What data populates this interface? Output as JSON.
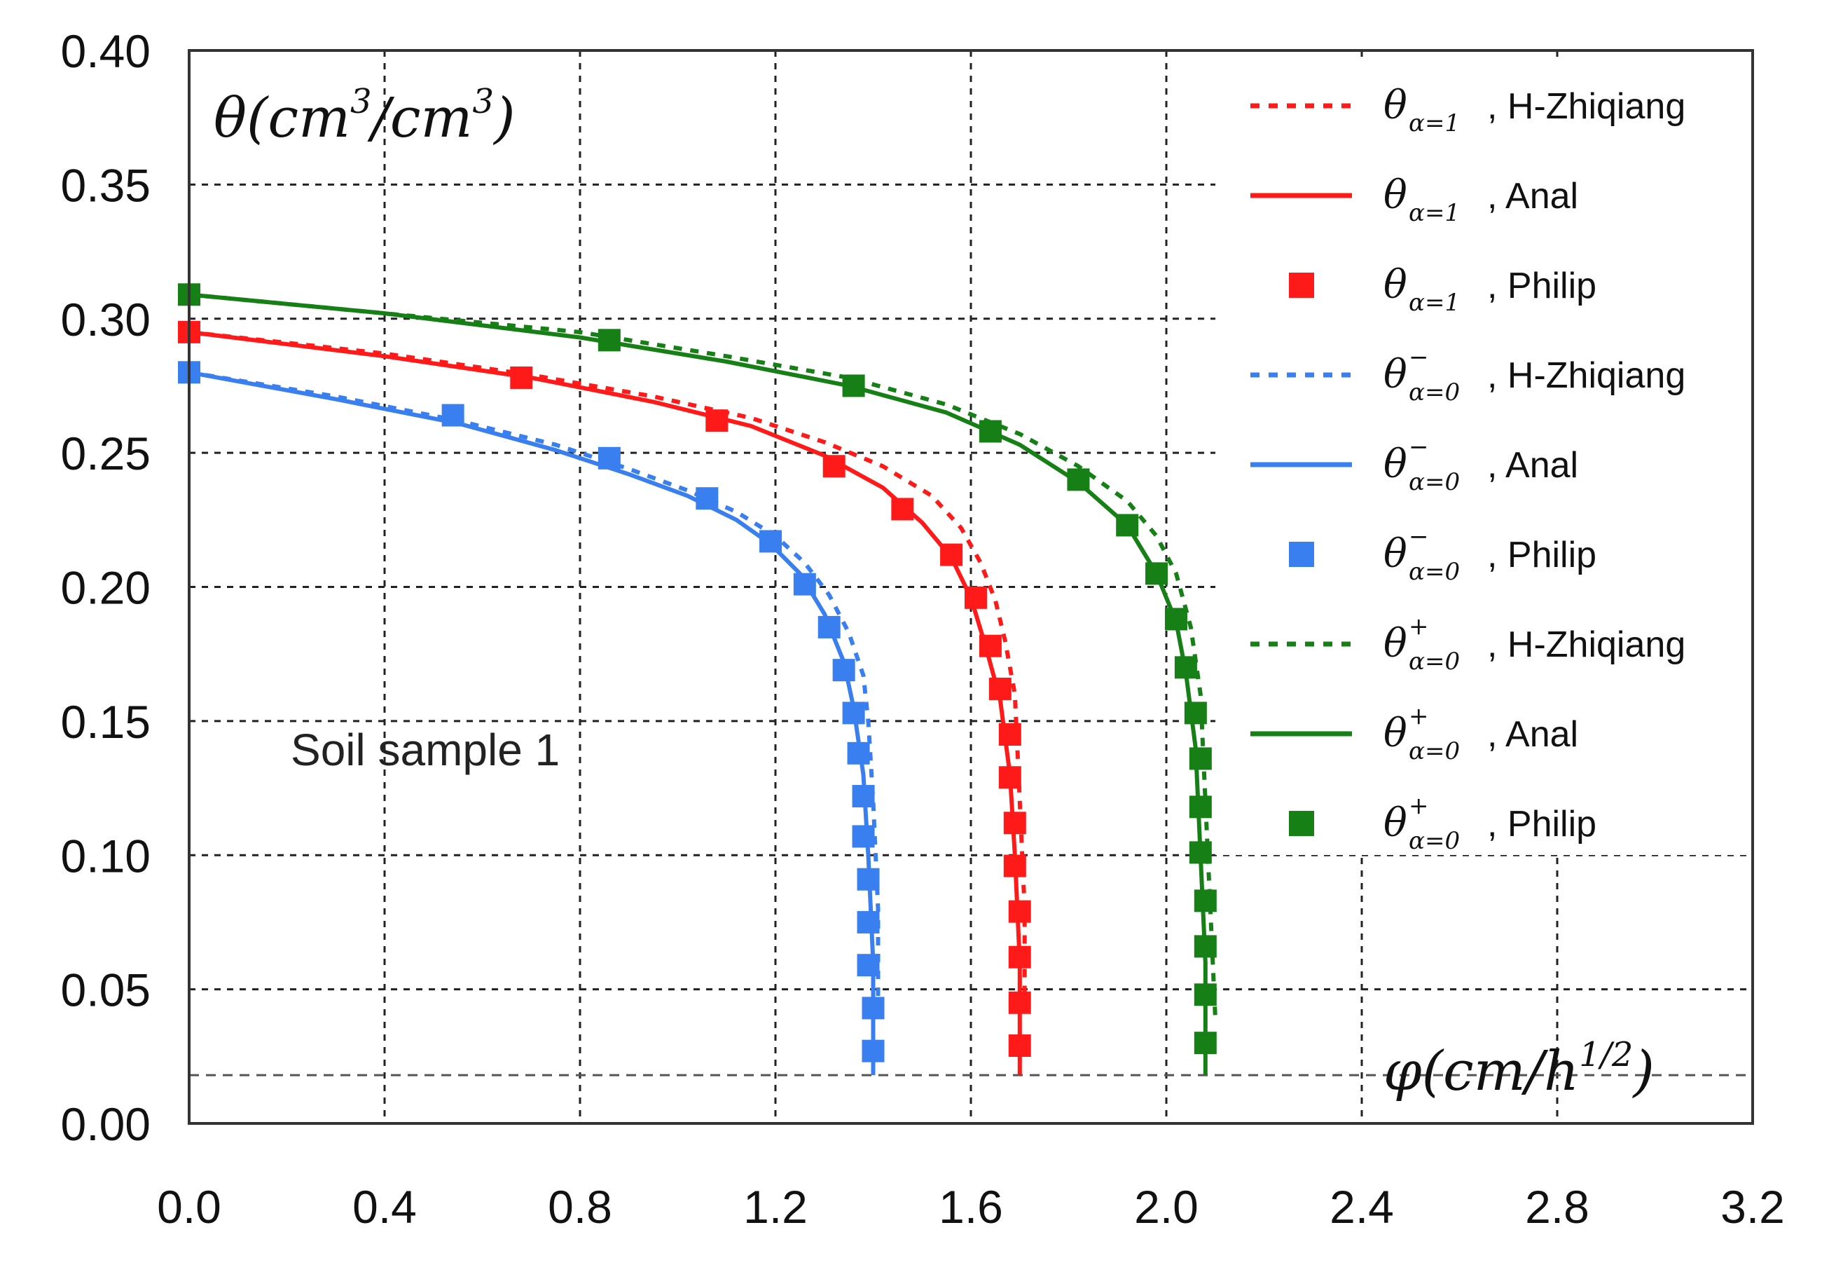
{
  "chart_data": {
    "type": "line",
    "title": "",
    "ylabel": "θ(cm³/cm³)",
    "ylabel_parts": {
      "sym": "θ(cm",
      "sup1": "3",
      "mid": "/cm",
      "sup2": "3",
      "end": ")"
    },
    "xlabel": "φ(cm/h^(1/2))",
    "xlabel_parts": {
      "sym": "φ(cm/h",
      "sup": "1/2",
      "end": ")"
    },
    "annotation": "Soil sample 1",
    "xlim": [
      0.0,
      3.2
    ],
    "ylim": [
      0.0,
      0.4
    ],
    "x_ticks": [
      "0.0",
      "0.4",
      "0.8",
      "1.2",
      "1.6",
      "2.0",
      "2.4",
      "2.8",
      "3.2"
    ],
    "y_ticks": [
      "0.00",
      "0.05",
      "0.10",
      "0.15",
      "0.20",
      "0.25",
      "0.30",
      "0.35",
      "0.40"
    ],
    "grid": true,
    "legend_position": "top-right",
    "colors": {
      "red": "#ff1a1a",
      "blue": "#3a7ff0",
      "green": "#168016",
      "grid": "#222222"
    },
    "legend": [
      {
        "symbol": "θ",
        "sup": "",
        "sub": "α=1",
        "text": ", H-Zhiqiang",
        "color": "red",
        "style": "dotted"
      },
      {
        "symbol": "θ",
        "sup": "",
        "sub": "α=1",
        "text": ", Anal",
        "color": "red",
        "style": "solid"
      },
      {
        "symbol": "θ",
        "sup": "",
        "sub": "α=1",
        "text": ", Philip",
        "color": "red",
        "style": "marker"
      },
      {
        "symbol": "θ",
        "sup": "−",
        "sub": "α=0",
        "text": ", H-Zhiqiang",
        "color": "blue",
        "style": "dotted"
      },
      {
        "symbol": "θ",
        "sup": "−",
        "sub": "α=0",
        "text": ", Anal",
        "color": "blue",
        "style": "solid"
      },
      {
        "symbol": "θ",
        "sup": "−",
        "sub": "α=0",
        "text": ", Philip",
        "color": "blue",
        "style": "marker"
      },
      {
        "symbol": "θ",
        "sup": "+",
        "sub": "α=0",
        "text": ", H-Zhiqiang",
        "color": "green",
        "style": "dotted"
      },
      {
        "symbol": "θ",
        "sup": "+",
        "sub": "α=0",
        "text": ", Anal",
        "color": "green",
        "style": "solid"
      },
      {
        "symbol": "θ",
        "sup": "+",
        "sub": "α=0",
        "text": ", Philip",
        "color": "green",
        "style": "marker"
      }
    ],
    "series": [
      {
        "name": "θα=0−, H-Zhiqiang",
        "color": "blue",
        "style": "dotted",
        "points": [
          [
            0.0,
            0.28
          ],
          [
            0.3,
            0.271
          ],
          [
            0.55,
            0.262
          ],
          [
            0.75,
            0.253
          ],
          [
            0.9,
            0.244
          ],
          [
            1.02,
            0.236
          ],
          [
            1.12,
            0.228
          ],
          [
            1.2,
            0.219
          ],
          [
            1.26,
            0.209
          ],
          [
            1.31,
            0.197
          ],
          [
            1.35,
            0.183
          ],
          [
            1.38,
            0.167
          ],
          [
            1.39,
            0.15
          ],
          [
            1.4,
            0.12
          ],
          [
            1.41,
            0.08
          ],
          [
            1.41,
            0.04
          ]
        ]
      },
      {
        "name": "θα=0−, Anal",
        "color": "blue",
        "style": "solid",
        "points": [
          [
            0.0,
            0.28
          ],
          [
            0.3,
            0.27
          ],
          [
            0.55,
            0.261
          ],
          [
            0.75,
            0.251
          ],
          [
            0.9,
            0.242
          ],
          [
            1.02,
            0.234
          ],
          [
            1.12,
            0.225
          ],
          [
            1.19,
            0.216
          ],
          [
            1.25,
            0.205
          ],
          [
            1.3,
            0.19
          ],
          [
            1.34,
            0.172
          ],
          [
            1.36,
            0.155
          ],
          [
            1.38,
            0.13
          ],
          [
            1.39,
            0.1
          ],
          [
            1.4,
            0.06
          ],
          [
            1.4,
            0.018
          ]
        ]
      },
      {
        "name": "θα=0−, Philip",
        "color": "blue",
        "style": "marker",
        "points": [
          [
            0.0,
            0.28
          ],
          [
            0.54,
            0.264
          ],
          [
            0.86,
            0.248
          ],
          [
            1.06,
            0.233
          ],
          [
            1.19,
            0.217
          ],
          [
            1.26,
            0.201
          ],
          [
            1.31,
            0.185
          ],
          [
            1.34,
            0.169
          ],
          [
            1.36,
            0.153
          ],
          [
            1.37,
            0.138
          ],
          [
            1.38,
            0.122
          ],
          [
            1.38,
            0.107
          ],
          [
            1.39,
            0.091
          ],
          [
            1.39,
            0.075
          ],
          [
            1.39,
            0.059
          ],
          [
            1.4,
            0.043
          ],
          [
            1.4,
            0.027
          ]
        ]
      },
      {
        "name": "θα=1, H-Zhiqiang",
        "color": "red",
        "style": "dotted",
        "points": [
          [
            0.0,
            0.295
          ],
          [
            0.4,
            0.287
          ],
          [
            0.7,
            0.279
          ],
          [
            0.95,
            0.271
          ],
          [
            1.15,
            0.263
          ],
          [
            1.3,
            0.254
          ],
          [
            1.42,
            0.245
          ],
          [
            1.52,
            0.234
          ],
          [
            1.58,
            0.222
          ],
          [
            1.62,
            0.209
          ],
          [
            1.65,
            0.195
          ],
          [
            1.67,
            0.18
          ],
          [
            1.69,
            0.16
          ],
          [
            1.7,
            0.12
          ],
          [
            1.71,
            0.08
          ],
          [
            1.71,
            0.04
          ]
        ]
      },
      {
        "name": "θα=1, Anal",
        "color": "red",
        "style": "solid",
        "points": [
          [
            0.0,
            0.295
          ],
          [
            0.4,
            0.286
          ],
          [
            0.7,
            0.278
          ],
          [
            0.95,
            0.269
          ],
          [
            1.15,
            0.26
          ],
          [
            1.3,
            0.249
          ],
          [
            1.42,
            0.237
          ],
          [
            1.5,
            0.224
          ],
          [
            1.56,
            0.211
          ],
          [
            1.6,
            0.196
          ],
          [
            1.63,
            0.178
          ],
          [
            1.66,
            0.158
          ],
          [
            1.68,
            0.13
          ],
          [
            1.69,
            0.1
          ],
          [
            1.7,
            0.06
          ],
          [
            1.7,
            0.018
          ]
        ]
      },
      {
        "name": "θα=1, Philip",
        "color": "red",
        "style": "marker",
        "points": [
          [
            0.0,
            0.295
          ],
          [
            0.68,
            0.278
          ],
          [
            1.08,
            0.262
          ],
          [
            1.32,
            0.245
          ],
          [
            1.46,
            0.229
          ],
          [
            1.56,
            0.212
          ],
          [
            1.61,
            0.196
          ],
          [
            1.64,
            0.178
          ],
          [
            1.66,
            0.162
          ],
          [
            1.68,
            0.145
          ],
          [
            1.68,
            0.129
          ],
          [
            1.69,
            0.112
          ],
          [
            1.69,
            0.096
          ],
          [
            1.7,
            0.079
          ],
          [
            1.7,
            0.062
          ],
          [
            1.7,
            0.045
          ],
          [
            1.7,
            0.029
          ]
        ]
      },
      {
        "name": "θα=0+, H-Zhiqiang",
        "color": "green",
        "style": "dotted",
        "points": [
          [
            0.0,
            0.309
          ],
          [
            0.4,
            0.302
          ],
          [
            0.8,
            0.295
          ],
          [
            1.1,
            0.286
          ],
          [
            1.35,
            0.278
          ],
          [
            1.55,
            0.268
          ],
          [
            1.7,
            0.257
          ],
          [
            1.82,
            0.245
          ],
          [
            1.92,
            0.232
          ],
          [
            1.98,
            0.219
          ],
          [
            2.02,
            0.205
          ],
          [
            2.05,
            0.185
          ],
          [
            2.07,
            0.16
          ],
          [
            2.08,
            0.12
          ],
          [
            2.09,
            0.08
          ],
          [
            2.1,
            0.04
          ]
        ]
      },
      {
        "name": "θα=0+, Anal",
        "color": "green",
        "style": "solid",
        "points": [
          [
            0.0,
            0.309
          ],
          [
            0.4,
            0.302
          ],
          [
            0.8,
            0.293
          ],
          [
            1.1,
            0.284
          ],
          [
            1.35,
            0.275
          ],
          [
            1.55,
            0.265
          ],
          [
            1.7,
            0.253
          ],
          [
            1.82,
            0.239
          ],
          [
            1.92,
            0.223
          ],
          [
            1.98,
            0.205
          ],
          [
            2.02,
            0.187
          ],
          [
            2.04,
            0.168
          ],
          [
            2.06,
            0.14
          ],
          [
            2.07,
            0.1
          ],
          [
            2.08,
            0.06
          ],
          [
            2.08,
            0.018
          ]
        ]
      },
      {
        "name": "θα=0+, Philip",
        "color": "green",
        "style": "marker",
        "points": [
          [
            0.0,
            0.309
          ],
          [
            0.86,
            0.292
          ],
          [
            1.36,
            0.275
          ],
          [
            1.64,
            0.258
          ],
          [
            1.82,
            0.24
          ],
          [
            1.92,
            0.223
          ],
          [
            1.98,
            0.205
          ],
          [
            2.02,
            0.188
          ],
          [
            2.04,
            0.17
          ],
          [
            2.06,
            0.153
          ],
          [
            2.07,
            0.136
          ],
          [
            2.07,
            0.118
          ],
          [
            2.07,
            0.101
          ],
          [
            2.08,
            0.083
          ],
          [
            2.08,
            0.066
          ],
          [
            2.08,
            0.048
          ],
          [
            2.08,
            0.03
          ]
        ]
      }
    ],
    "reference_lines": [
      {
        "y": 0.018,
        "style": "dashed"
      }
    ]
  }
}
